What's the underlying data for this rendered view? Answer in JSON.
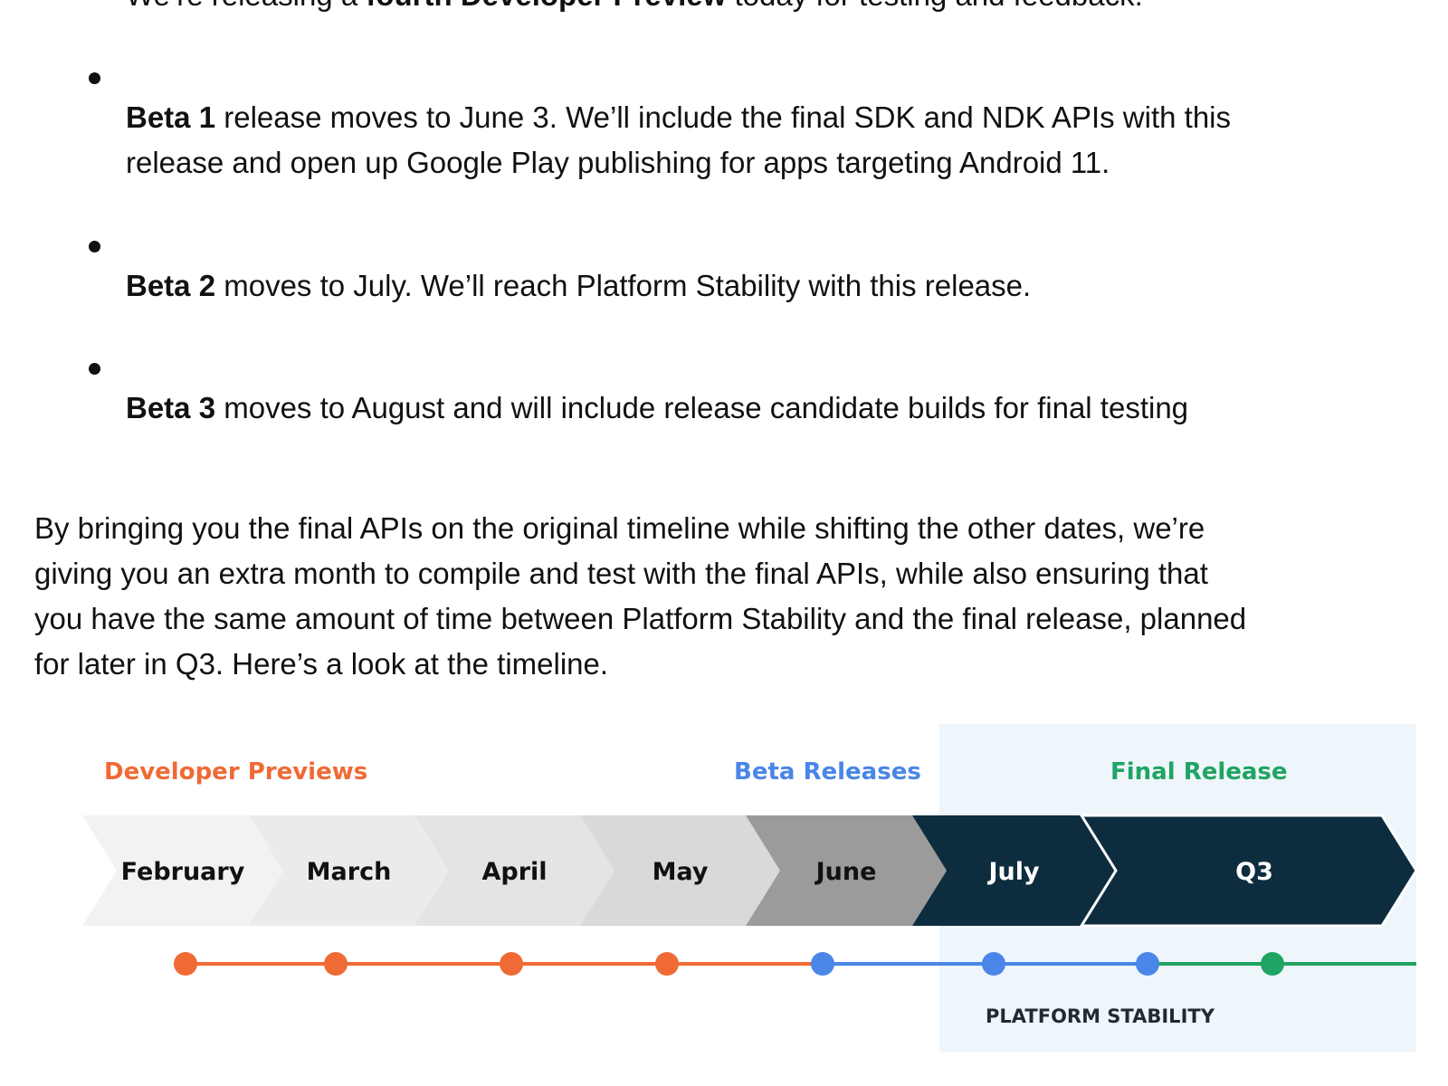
{
  "intro": {
    "pre": "We’re releasing a ",
    "bold": "fourth Developer Preview",
    "post": " today for testing and feedback."
  },
  "bullets": [
    {
      "bold": "Beta 1",
      "lines": [
        " release moves to June 3. We’ll include the final SDK and NDK APIs with this",
        "release and open up Google Play publishing for apps targeting Android 11."
      ]
    },
    {
      "bold": "Beta 2",
      "lines": [
        " moves to July. We’ll reach Platform Stability with this release."
      ]
    },
    {
      "bold": "Beta 3",
      "lines": [
        " moves to August and will include release candidate builds for final testing"
      ]
    }
  ],
  "paragraph": [
    "By bringing you the final APIs on the original timeline while shifting the other dates, we’re",
    "giving you an extra month to compile and test with the final APIs, while also ensuring that",
    "you have the same amount of time between Platform Stability and the final release, planned",
    "for  later in Q3. Here’s a look at the timeline."
  ],
  "timeline": {
    "phases": [
      {
        "label": "Developer Previews",
        "color": "#f06a35"
      },
      {
        "label": "Beta Releases",
        "color": "#4a86e8"
      },
      {
        "label": "Final Release",
        "color": "#1fa463"
      }
    ],
    "segments": [
      {
        "label": "February",
        "fill": "#f1f2f3",
        "text": "#111111"
      },
      {
        "label": "March",
        "fill": "#ebebeb",
        "text": "#111111"
      },
      {
        "label": "April",
        "fill": "#e4e4e4",
        "text": "#111111"
      },
      {
        "label": "May",
        "fill": "#d9d9d9",
        "text": "#111111"
      },
      {
        "label": "June",
        "fill": "#9b9b9b",
        "text": "#111111"
      },
      {
        "label": "July",
        "fill": "#0d2d3e",
        "text": "#ffffff"
      },
      {
        "label": "Q3",
        "fill": "#0d2d3e",
        "text": "#ffffff"
      }
    ],
    "milestones": [
      "#f06a35",
      "#f06a35",
      "#f06a35",
      "#f06a35",
      "#4a86e8",
      "#4a86e8",
      "#4a86e8",
      "#1fa463"
    ],
    "platform_stability_label": "PLATFORM STABILITY",
    "highlight_color": "#eef5fb"
  }
}
